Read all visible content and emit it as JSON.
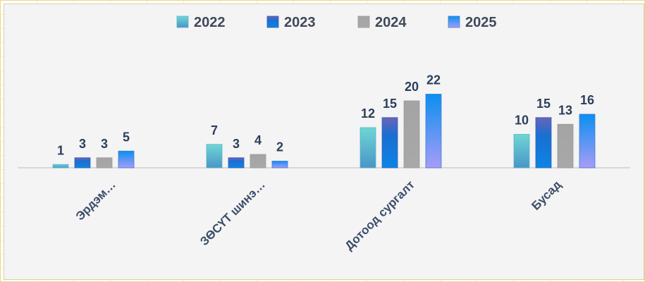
{
  "chart_data": {
    "type": "bar",
    "title": "",
    "xlabel": "",
    "ylabel": "",
    "categories": [
      "Эрдэм…",
      "ЗӨСҮТ шинэ…",
      "Дотоод сургалт",
      "Бусад"
    ],
    "series": [
      {
        "name": "2022",
        "values": [
          1,
          7,
          12,
          10
        ],
        "color": "#5fcfd0"
      },
      {
        "name": "2023",
        "values": [
          3,
          3,
          15,
          15
        ],
        "color": "#1e6fd0"
      },
      {
        "name": "2024",
        "values": [
          3,
          4,
          20,
          13
        ],
        "color": "#a6a6a6"
      },
      {
        "name": "2025",
        "values": [
          5,
          2,
          22,
          16
        ],
        "color": "#2f8ee8"
      }
    ],
    "ylim": [
      0,
      22
    ],
    "data_labels": true,
    "grid": false,
    "legend_position": "top-center"
  }
}
